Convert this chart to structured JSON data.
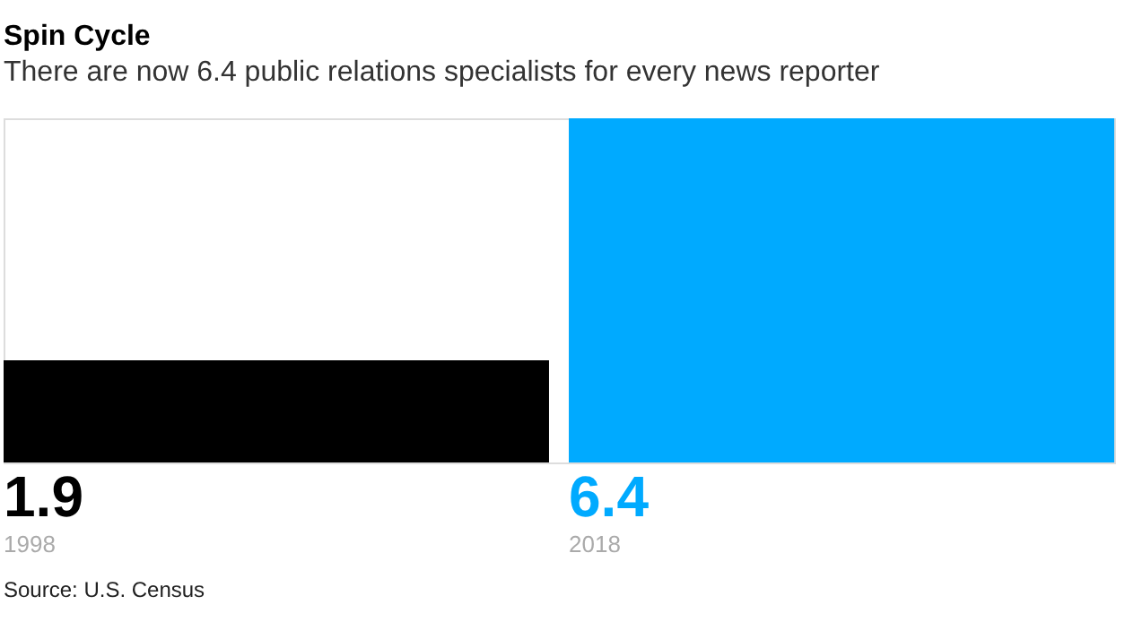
{
  "chart_data": {
    "type": "bar",
    "title": "Spin Cycle",
    "subtitle": "There are now 6.4 public relations specialists for every news reporter",
    "categories": [
      "1998",
      "2018"
    ],
    "values": [
      1.9,
      6.4
    ],
    "colors": [
      "#000000",
      "#00aaff"
    ],
    "data_labels": true,
    "annotations": [
      "Source: U.S. Census"
    ]
  }
}
